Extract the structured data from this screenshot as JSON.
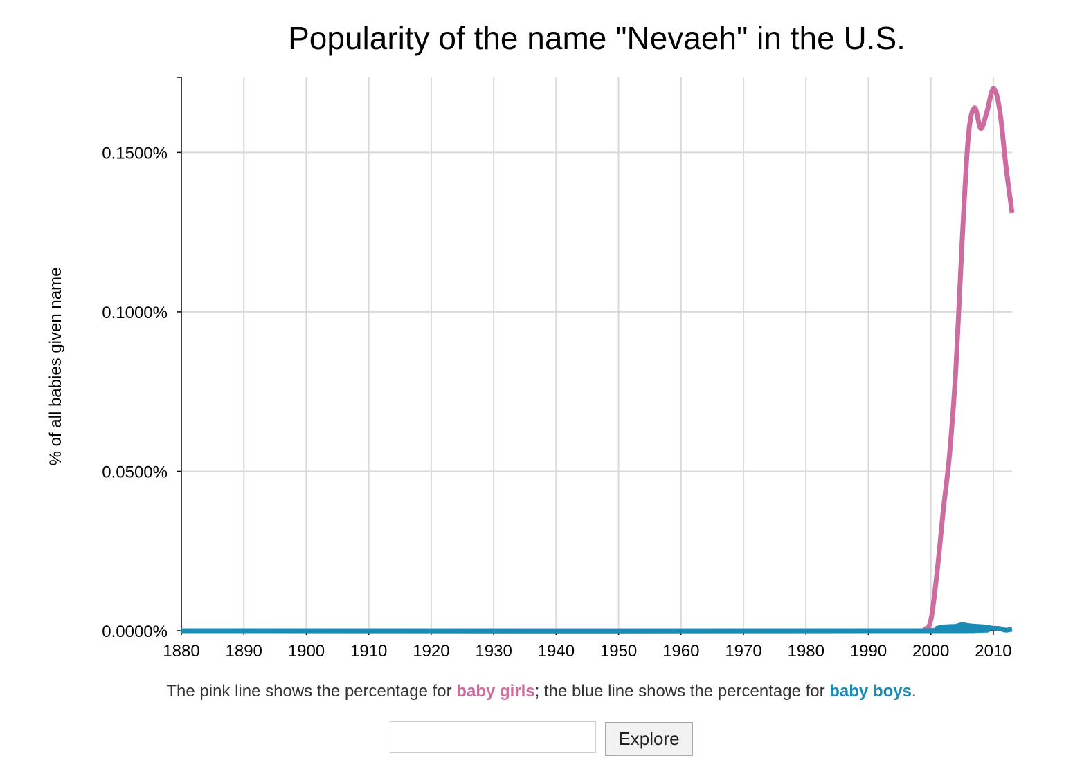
{
  "title": "Popularity of the name \"Nevaeh\" in the U.S.",
  "caption": {
    "prefix": "The pink line shows the percentage for ",
    "girls_label": "baby girls",
    "middle": "; the blue line shows the percentage for ",
    "boys_label": "baby boys",
    "suffix": "."
  },
  "search": {
    "value": "",
    "placeholder": ""
  },
  "explore_label": "Explore",
  "colors": {
    "girls": "#cc6c9f",
    "boys": "#1a8bb5",
    "grid": "#d9d9d9",
    "axis": "#000000"
  },
  "chart_data": {
    "type": "line",
    "title": "Popularity of the name \"Nevaeh\" in the U.S.",
    "xlabel": "",
    "ylabel": "% of all babies given name",
    "xlim": [
      1880,
      2013
    ],
    "ylim": [
      0,
      0.1735
    ],
    "x_ticks": [
      1880,
      1890,
      1900,
      1910,
      1920,
      1930,
      1940,
      1950,
      1960,
      1970,
      1980,
      1990,
      2000,
      2010
    ],
    "y_ticks": [
      0,
      0.05,
      0.1,
      0.15
    ],
    "y_tick_labels": [
      "0.0000%",
      "0.0500%",
      "0.1000%",
      "0.1500%"
    ],
    "grid": true,
    "legend": "none",
    "series": [
      {
        "name": "baby girls",
        "color": "#cc6c9f",
        "x": [
          1880,
          1998,
          1999,
          2000,
          2001,
          2002,
          2003,
          2004,
          2005,
          2006,
          2007,
          2008,
          2009,
          2010,
          2011,
          2012,
          2013
        ],
        "y": [
          0,
          0,
          0.0004,
          0.0034,
          0.0185,
          0.038,
          0.0555,
          0.082,
          0.122,
          0.155,
          0.164,
          0.1575,
          0.163,
          0.17,
          0.1635,
          0.146,
          0.131
        ]
      },
      {
        "name": "baby boys",
        "color": "#1a8bb5",
        "x": [
          1880,
          2000,
          2001,
          2002,
          2003,
          2004,
          2005,
          2006,
          2007,
          2008,
          2009,
          2010,
          2011,
          2012,
          2013
        ],
        "y": [
          0,
          0,
          0.0008,
          0.0012,
          0.0013,
          0.0014,
          0.0019,
          0.0016,
          0.0014,
          0.0013,
          0.0011,
          0.0008,
          0.0007,
          0.0002,
          0.0005
        ]
      }
    ]
  }
}
